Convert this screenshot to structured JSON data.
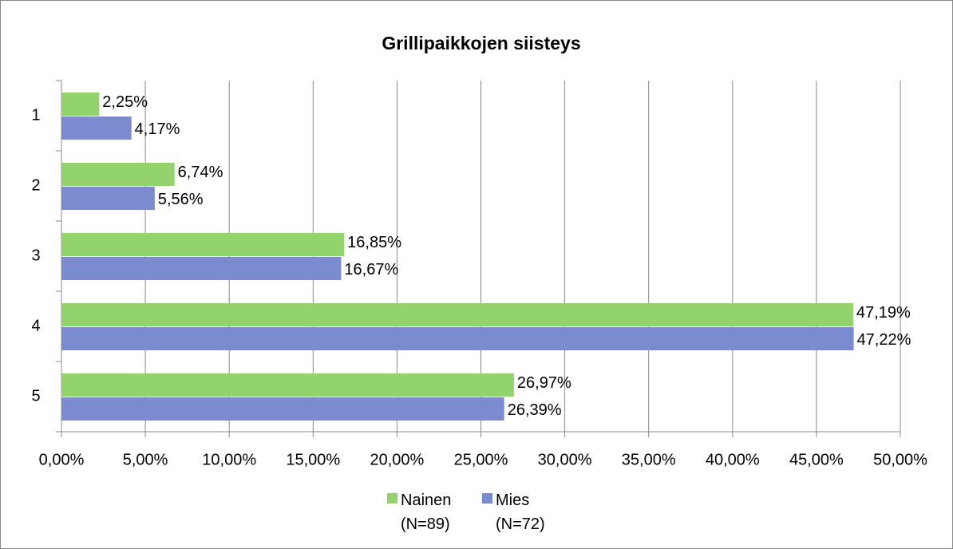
{
  "chart_data": {
    "type": "bar",
    "orientation": "horizontal",
    "title": "Grillipaikkojen siisteys",
    "categories": [
      "1",
      "2",
      "3",
      "4",
      "5"
    ],
    "series": [
      {
        "name": "Nainen (N=89)",
        "color": "#92d36e",
        "values": [
          2.25,
          6.74,
          16.85,
          47.19,
          26.97
        ],
        "value_labels": [
          "2,25%",
          "6,74%",
          "16,85%",
          "47,19%",
          "26,97%"
        ]
      },
      {
        "name": "Mies (N=72)",
        "color": "#7a8bd0",
        "values": [
          4.17,
          5.56,
          16.67,
          47.22,
          26.39
        ],
        "value_labels": [
          "4,17%",
          "5,56%",
          "16,67%",
          "47,22%",
          "26,39%"
        ]
      }
    ],
    "xlim": [
      0,
      50
    ],
    "xticks": [
      {
        "value": 0,
        "label": "0,00%"
      },
      {
        "value": 5,
        "label": "5,00%"
      },
      {
        "value": 10,
        "label": "10,00%"
      },
      {
        "value": 15,
        "label": "15,00%"
      },
      {
        "value": 20,
        "label": "20,00%"
      },
      {
        "value": 25,
        "label": "25,00%"
      },
      {
        "value": 30,
        "label": "30,00%"
      },
      {
        "value": 35,
        "label": "35,00%"
      },
      {
        "value": 40,
        "label": "40,00%"
      },
      {
        "value": 45,
        "label": "45,00%"
      },
      {
        "value": 50,
        "label": "50,00%"
      }
    ],
    "grid": true,
    "legend": "bottom"
  }
}
